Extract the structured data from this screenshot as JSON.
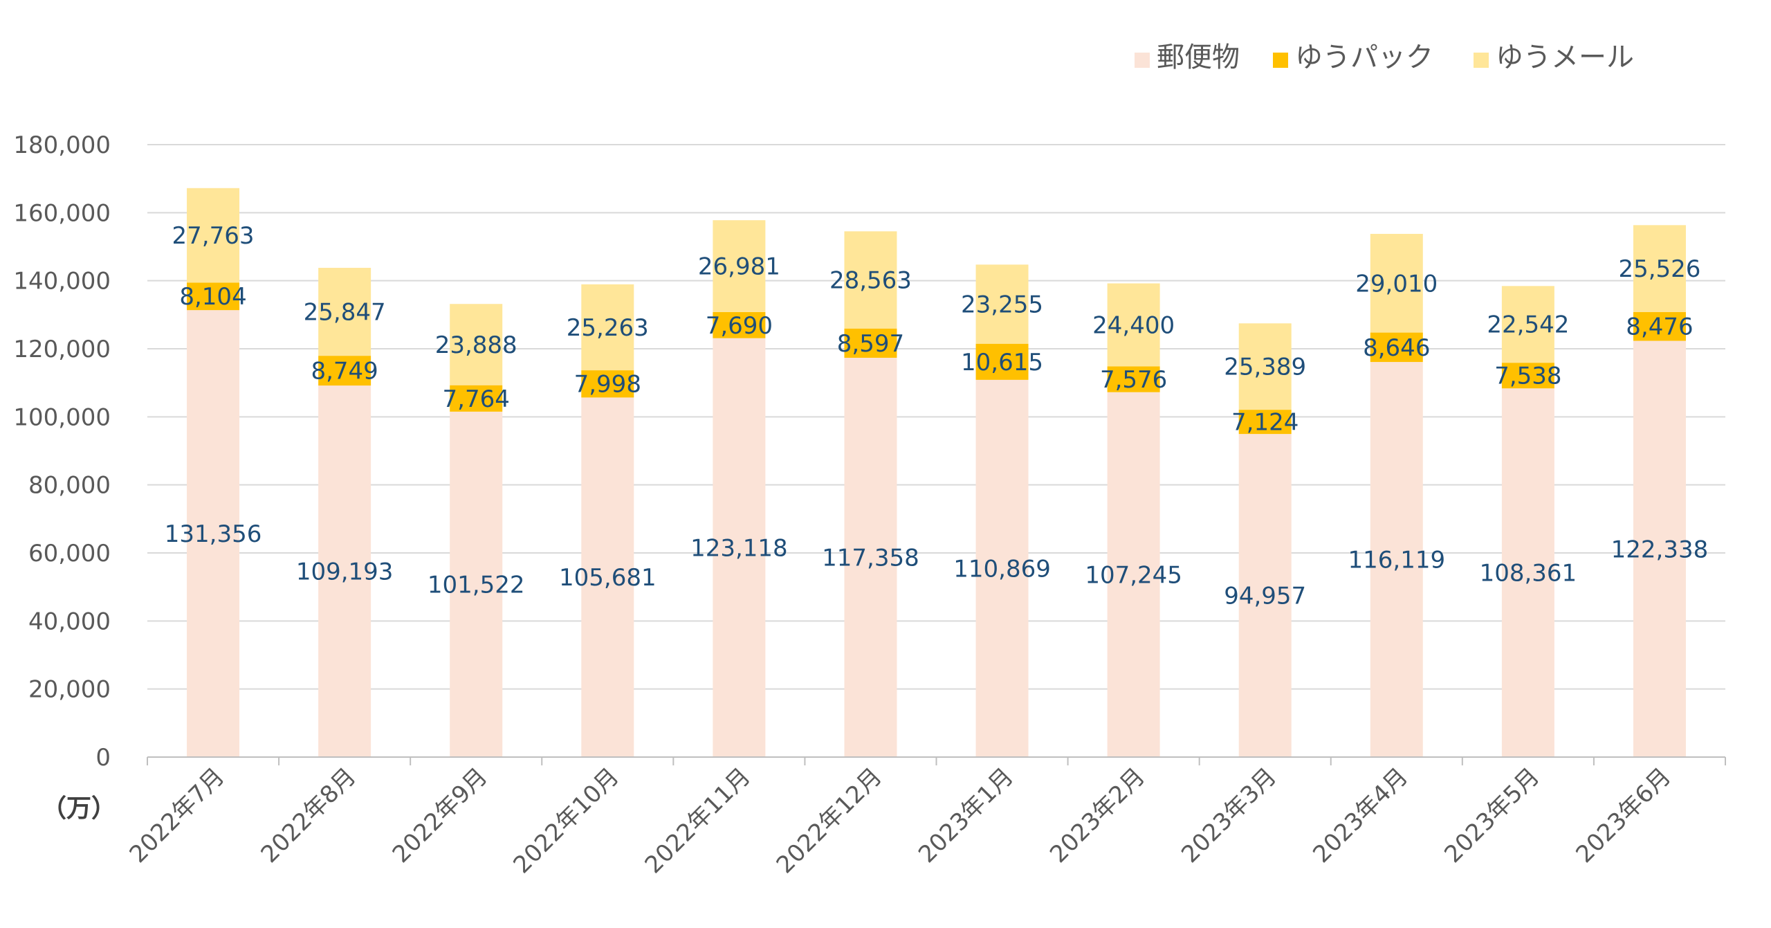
{
  "chart_data": {
    "type": "bar",
    "stacked": true,
    "unit_label": "（万）",
    "categories": [
      "2022年7月",
      "2022年8月",
      "2022年9月",
      "2022年10月",
      "2022年11月",
      "2022年12月",
      "2023年1月",
      "2023年2月",
      "2023年3月",
      "2023年4月",
      "2023年5月",
      "2023年6月"
    ],
    "series": [
      {
        "name": "郵便物",
        "color": "#FBE3D7",
        "values": [
          131356,
          109193,
          101522,
          105681,
          123118,
          117358,
          110869,
          107245,
          94957,
          116119,
          108361,
          122338
        ]
      },
      {
        "name": "ゆうパック",
        "color": "#FFC000",
        "values": [
          8104,
          8749,
          7764,
          7998,
          7690,
          8597,
          10615,
          7576,
          7124,
          8646,
          7538,
          8476
        ]
      },
      {
        "name": "ゆうメール",
        "color": "#FFE699",
        "values": [
          27763,
          25847,
          23888,
          25263,
          26981,
          28563,
          23255,
          24400,
          25389,
          29010,
          22542,
          25526
        ]
      }
    ],
    "ylim": [
      0,
      180000
    ],
    "yticks": [
      0,
      20000,
      40000,
      60000,
      80000,
      100000,
      120000,
      140000,
      160000,
      180000
    ],
    "ytick_labels": [
      "0",
      "20,000",
      "40,000",
      "60,000",
      "80,000",
      "100,000",
      "120,000",
      "140,000",
      "160,000",
      "180,000"
    ],
    "grid": true,
    "legend_position": "top-right",
    "label_color": "#1F4E79",
    "axis_text_color": "#595959"
  }
}
